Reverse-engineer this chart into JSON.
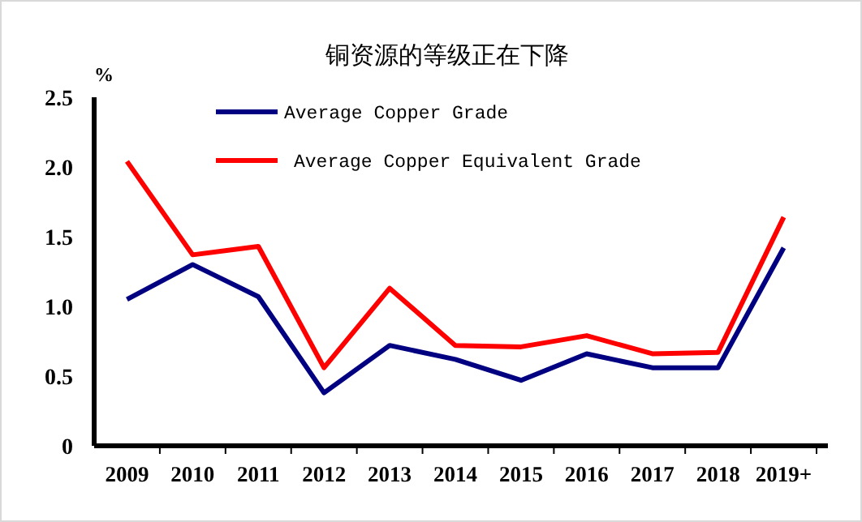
{
  "chart_data": {
    "type": "line",
    "title": "铜资源的等级正在下降",
    "ylabel": "%",
    "categories": [
      "2009",
      "2010",
      "2011",
      "2012",
      "2013",
      "2014",
      "2015",
      "2016",
      "2017",
      "2018",
      "2019+"
    ],
    "series": [
      {
        "name": "Average Copper Grade",
        "color": "#000080",
        "values": [
          1.05,
          1.3,
          1.07,
          0.38,
          0.72,
          0.62,
          0.47,
          0.66,
          0.56,
          0.56,
          1.42
        ]
      },
      {
        "name": "Average Copper Equivalent Grade",
        "color": "#ff0000",
        "values": [
          2.04,
          1.37,
          1.43,
          0.56,
          1.13,
          0.72,
          0.71,
          0.79,
          0.66,
          0.67,
          1.64
        ]
      }
    ],
    "ylim": [
      0,
      2.5
    ],
    "yticks": [
      0,
      {
        "value": 0.5,
        "label": "0.5"
      },
      {
        "value": 1.0,
        "label": "1.0"
      },
      {
        "value": 1.5,
        "label": "1.5"
      },
      {
        "value": 2.0,
        "label": "2.0"
      },
      {
        "value": 2.5,
        "label": "2.5"
      }
    ],
    "legend": "top left"
  }
}
